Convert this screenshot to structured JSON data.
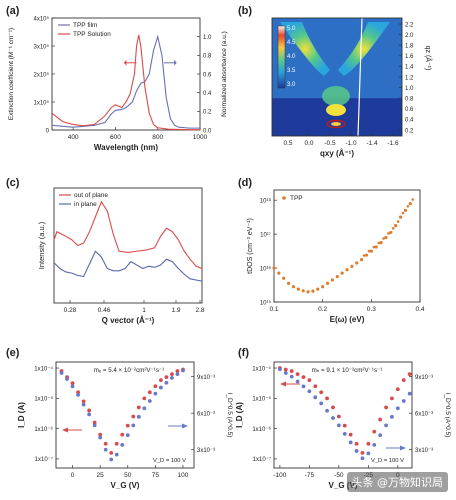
{
  "watermark": "头条 @万物知识局",
  "chart_data": [
    {
      "panel": "(a)",
      "type": "line",
      "xlabel": "Wavelength (nm)",
      "ylabel": "Extinction coefficient (M⁻¹ cm⁻¹)",
      "y2label": "Normalized absorbance (a.u.)",
      "xlim": [
        300,
        1000
      ],
      "xticks": [
        "400",
        "600",
        "800",
        "1000"
      ],
      "ylim": [
        0,
        400000
      ],
      "yticks": [
        "0",
        "1x10⁵",
        "2x10⁵",
        "3x10⁵",
        "4x10⁵"
      ],
      "y2lim": [
        0,
        1.2
      ],
      "y2ticks": [
        "0.0",
        "0.2",
        "0.4",
        "0.6",
        "0.8",
        "1.0"
      ],
      "legend": [
        "TPP film",
        "TPP Solution"
      ],
      "series": [
        {
          "name": "TPP film",
          "axis": "y2",
          "color": "#6a6fb0",
          "x": [
            300,
            350,
            400,
            450,
            500,
            550,
            580,
            600,
            630,
            650,
            680,
            700,
            720,
            740,
            760,
            780,
            800,
            820,
            840,
            860,
            880,
            900,
            950,
            1000
          ],
          "y": [
            0.05,
            0.04,
            0.03,
            0.04,
            0.05,
            0.08,
            0.17,
            0.21,
            0.22,
            0.24,
            0.3,
            0.42,
            0.5,
            0.52,
            0.6,
            0.85,
            1.0,
            0.8,
            0.35,
            0.12,
            0.05,
            0.03,
            0.02,
            0.02
          ]
        },
        {
          "name": "TPP Solution",
          "axis": "y",
          "color": "#d94b4b",
          "x": [
            300,
            350,
            400,
            450,
            500,
            550,
            580,
            600,
            630,
            650,
            670,
            690,
            700,
            710,
            720,
            740,
            760,
            780,
            800,
            850,
            900,
            950,
            1000
          ],
          "y": [
            60000,
            30000,
            20000,
            15000,
            20000,
            50000,
            80000,
            90000,
            80000,
            100000,
            130000,
            200000,
            300000,
            340000,
            300000,
            150000,
            60000,
            20000,
            8000,
            3000,
            2000,
            1000,
            1000
          ]
        }
      ]
    },
    {
      "panel": "(b)",
      "type": "heatmap",
      "xlabel": "qxy (Å⁻¹)",
      "ylabel": "qz (Å⁻¹)",
      "xticks": [
        "0.5",
        "0.0",
        "-0.5",
        "-1.0",
        "-1.4",
        "-1.6"
      ],
      "yticks": [
        "0.2",
        "0.4",
        "0.6",
        "0.8",
        "1.0",
        "1.2",
        "1.4",
        "1.6",
        "1.8",
        "2.0",
        "2.2"
      ],
      "colorbar_ticks": [
        "5.0",
        "4.5",
        "4.0",
        "3.5",
        "3.0"
      ]
    },
    {
      "panel": "(c)",
      "type": "line",
      "xlabel": "Q vector (Å⁻¹)",
      "ylabel": "Intensity (a.u.)",
      "xticks": [
        "0.28",
        "0.46",
        "1",
        "1.9",
        "2.8"
      ],
      "legend": [
        "out of plane",
        "in plane"
      ],
      "series": [
        {
          "name": "out of plane",
          "color": "#d94b4b",
          "x": [
            0.0,
            0.02,
            0.05,
            0.08,
            0.12,
            0.16,
            0.2,
            0.24,
            0.28,
            0.32,
            0.36,
            0.4,
            0.44,
            0.5,
            0.56,
            0.62,
            0.68,
            0.72,
            0.76,
            0.8,
            0.84,
            0.88,
            0.92,
            0.96,
            1.0
          ],
          "y": [
            0.55,
            0.62,
            0.6,
            0.58,
            0.55,
            0.5,
            0.52,
            0.62,
            0.75,
            0.88,
            0.8,
            0.6,
            0.45,
            0.44,
            0.45,
            0.46,
            0.48,
            0.58,
            0.65,
            0.62,
            0.55,
            0.45,
            0.38,
            0.32,
            0.3
          ]
        },
        {
          "name": "in plane",
          "color": "#5a66ad",
          "x": [
            0.0,
            0.04,
            0.08,
            0.12,
            0.16,
            0.2,
            0.24,
            0.28,
            0.32,
            0.36,
            0.4,
            0.44,
            0.48,
            0.52,
            0.56,
            0.6,
            0.64,
            0.68,
            0.72,
            0.76,
            0.8,
            0.84,
            0.88,
            0.92,
            0.96,
            1.0
          ],
          "y": [
            0.35,
            0.3,
            0.27,
            0.26,
            0.24,
            0.23,
            0.34,
            0.45,
            0.4,
            0.3,
            0.28,
            0.28,
            0.3,
            0.36,
            0.33,
            0.3,
            0.32,
            0.31,
            0.33,
            0.38,
            0.36,
            0.3,
            0.25,
            0.21,
            0.2,
            0.19
          ]
        }
      ]
    },
    {
      "panel": "(d)",
      "type": "scatter",
      "xlabel": "E(ω) (eV)",
      "ylabel": "tDOS (cm⁻³ eV⁻¹)",
      "xlim": [
        0.1,
        0.4
      ],
      "xticks": [
        "0.1",
        "0.2",
        "0.3",
        "0.4"
      ],
      "ylim_log10": [
        15,
        18.3
      ],
      "yticks": [
        "10¹⁵",
        "10¹⁶",
        "10¹⁷",
        "10¹⁸"
      ],
      "legend": [
        "TPP"
      ],
      "series": [
        {
          "name": "TPP",
          "color": "#e07b2a",
          "x": [
            0.1,
            0.11,
            0.12,
            0.13,
            0.14,
            0.15,
            0.16,
            0.17,
            0.18,
            0.19,
            0.2,
            0.21,
            0.22,
            0.23,
            0.24,
            0.25,
            0.26,
            0.27,
            0.28,
            0.29,
            0.3,
            0.31,
            0.32,
            0.33,
            0.34,
            0.35,
            0.36,
            0.37,
            0.38
          ],
          "y": [
            16.0,
            15.85,
            15.7,
            15.55,
            15.45,
            15.38,
            15.33,
            15.3,
            15.32,
            15.38,
            15.45,
            15.55,
            15.65,
            15.75,
            15.85,
            15.95,
            16.05,
            16.15,
            16.25,
            16.38,
            16.5,
            16.62,
            16.75,
            16.9,
            17.05,
            17.25,
            17.5,
            17.7,
            17.9
          ]
        }
      ]
    },
    {
      "panel": "(e)",
      "type": "scatter",
      "annotation": "mₑ = 5.4 × 10⁻²cm²V⁻¹s⁻¹",
      "condition": "V_D = 100 V",
      "xlabel": "V_G (V)",
      "ylabel": "I_D (A)",
      "y2label": "I_D^0.5 (A^0.5)",
      "xticks": [
        "0",
        "25",
        "50",
        "75",
        "100"
      ],
      "yticks": [
        "1x10⁻⁷",
        "1x10⁻⁶",
        "1x10⁻⁵",
        "1x10⁻⁴"
      ],
      "y2ticks": [
        "3x10⁻³",
        "6x10⁻³",
        "9x10⁻³"
      ],
      "series": [
        {
          "name": "I_D",
          "axis": "y",
          "color": "#d94b4b",
          "x": [
            -10,
            -5,
            0,
            5,
            10,
            15,
            20,
            25,
            30,
            35,
            40,
            45,
            50,
            55,
            60,
            65,
            70,
            75,
            80,
            85,
            90,
            95,
            100
          ],
          "y": [
            -4.1,
            -4.3,
            -4.5,
            -4.8,
            -5.1,
            -5.4,
            -5.8,
            -6.2,
            -6.5,
            -6.8,
            -6.5,
            -6.2,
            -5.9,
            -5.6,
            -5.3,
            -5.0,
            -4.8,
            -4.6,
            -4.4,
            -4.3,
            -4.2,
            -4.1,
            -4.05
          ]
        },
        {
          "name": "I_D^0.5",
          "axis": "y2",
          "color": "#6a78c8",
          "x": [
            -10,
            -5,
            0,
            5,
            10,
            15,
            20,
            25,
            30,
            35,
            40,
            45,
            50,
            55,
            60,
            65,
            70,
            75,
            80,
            85,
            90,
            95,
            100
          ],
          "y": [
            9.3,
            8.8,
            8.2,
            7.5,
            6.7,
            5.9,
            5.0,
            4.0,
            3.0,
            2.2,
            2.6,
            3.4,
            4.2,
            5.0,
            5.7,
            6.4,
            7.0,
            7.6,
            8.1,
            8.5,
            8.9,
            9.2,
            9.5
          ]
        }
      ]
    },
    {
      "panel": "(f)",
      "type": "scatter",
      "annotation": "mₕ = 9.1 × 10⁻²cm²V⁻¹s⁻¹",
      "condition": "V_D = 100 V",
      "xlabel": "V_G (V)",
      "ylabel": "I_D (A)",
      "y2label": "I_D^0.5 (A^0.5)",
      "xticks": [
        "-100",
        "-75",
        "-50",
        "-25",
        "0"
      ],
      "yticks": [
        "1x10⁻⁷",
        "1x10⁻⁶",
        "1x10⁻⁵",
        "1x10⁻⁴"
      ],
      "y2ticks": [
        "3x10⁻³",
        "6x10⁻³",
        "9x10⁻³"
      ],
      "series": [
        {
          "name": "I_D",
          "axis": "y",
          "color": "#d94b4b",
          "x": [
            -100,
            -95,
            -90,
            -85,
            -80,
            -75,
            -70,
            -65,
            -60,
            -55,
            -50,
            -45,
            -40,
            -35,
            -30,
            -25,
            -20,
            -15,
            -10,
            -5,
            0,
            5,
            10
          ],
          "y": [
            -4.0,
            -4.05,
            -4.1,
            -4.2,
            -4.3,
            -4.4,
            -4.6,
            -4.8,
            -5.0,
            -5.3,
            -5.6,
            -5.9,
            -6.2,
            -6.5,
            -6.8,
            -6.5,
            -6.1,
            -5.7,
            -5.3,
            -5.0,
            -4.7,
            -4.4,
            -4.2
          ]
        },
        {
          "name": "I_D^0.5",
          "axis": "y2",
          "color": "#6a78c8",
          "x": [
            -100,
            -95,
            -90,
            -85,
            -80,
            -75,
            -70,
            -65,
            -60,
            -55,
            -50,
            -45,
            -40,
            -35,
            -30,
            -25,
            -20,
            -15,
            -10,
            -5,
            0,
            5,
            10
          ],
          "y": [
            9.6,
            9.3,
            9.0,
            8.6,
            8.2,
            7.8,
            7.3,
            6.8,
            6.2,
            5.6,
            5.0,
            4.3,
            3.6,
            2.9,
            2.3,
            2.7,
            3.4,
            4.2,
            5.0,
            5.7,
            6.4,
            7.0,
            7.6
          ]
        }
      ]
    }
  ]
}
